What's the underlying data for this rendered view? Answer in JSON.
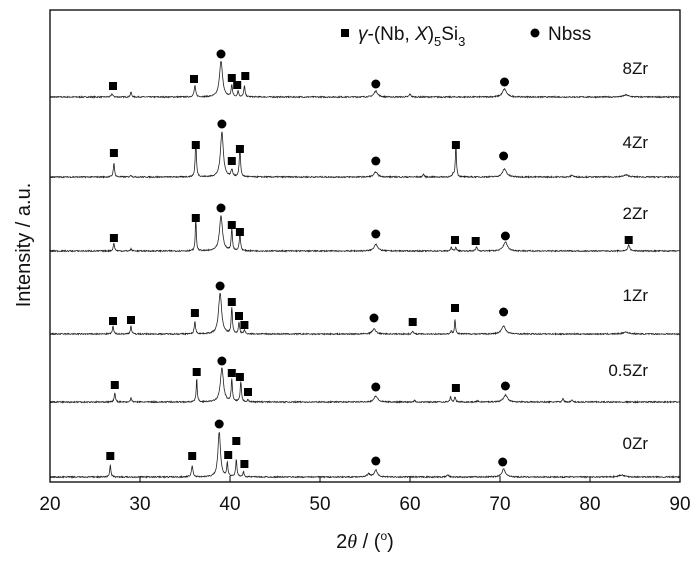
{
  "chart_data": {
    "type": "line",
    "title": "",
    "xlabel_prefix": "2",
    "xlabel_theta": "θ",
    "xlabel_suffix": " / (",
    "xlabel_deg": "o",
    "xlabel_close": ")",
    "ylabel": "Intensity / a.u.",
    "xlim": [
      20,
      90
    ],
    "xticks": [
      "20",
      "30",
      "40",
      "50",
      "60",
      "70",
      "80",
      "90"
    ],
    "grid": false,
    "legend_position": "top-right",
    "legend": [
      {
        "marker": "square",
        "parts": [
          "γ",
          "-(Nb, ",
          "X",
          ")",
          "5",
          "Si",
          "3"
        ]
      },
      {
        "marker": "circle",
        "label": "Nbss"
      }
    ],
    "series": [
      {
        "name": "8Zr",
        "peaks": [
          [
            26.9,
            3,
            0.15
          ],
          [
            29.0,
            5,
            0.12
          ],
          [
            36.1,
            11,
            0.15
          ],
          [
            39.0,
            36,
            0.3
          ],
          [
            40.2,
            12,
            0.12
          ],
          [
            40.9,
            6,
            0.12
          ],
          [
            41.6,
            11,
            0.12
          ],
          [
            56.2,
            6,
            0.35
          ],
          [
            60.0,
            3,
            0.15
          ],
          [
            70.5,
            8,
            0.4
          ],
          [
            84.0,
            2,
            0.5
          ]
        ],
        "markers": [
          [
            "square",
            27.0,
            11
          ],
          [
            "square",
            36.0,
            18
          ],
          [
            "circle",
            39.0,
            43
          ],
          [
            "square",
            40.2,
            19
          ],
          [
            "square",
            40.8,
            12
          ],
          [
            "square",
            41.7,
            21
          ],
          [
            "circle",
            56.2,
            13
          ],
          [
            "circle",
            70.5,
            15
          ]
        ]
      },
      {
        "name": "4Zr",
        "peaks": [
          [
            27.1,
            14,
            0.12
          ],
          [
            29.0,
            2,
            0.12
          ],
          [
            36.2,
            35,
            0.12
          ],
          [
            39.1,
            45,
            0.28
          ],
          [
            40.2,
            7,
            0.15
          ],
          [
            41.1,
            30,
            0.12
          ],
          [
            56.2,
            5,
            0.35
          ],
          [
            61.5,
            3,
            0.12
          ],
          [
            64.8,
            3,
            0.12
          ],
          [
            65.1,
            35,
            0.1
          ],
          [
            70.5,
            8,
            0.4
          ],
          [
            78.0,
            2,
            0.2
          ],
          [
            84.0,
            2,
            0.5
          ]
        ],
        "markers": [
          [
            "square",
            27.1,
            24
          ],
          [
            "square",
            36.2,
            32
          ],
          [
            "circle",
            39.1,
            53
          ],
          [
            "square",
            40.2,
            16
          ],
          [
            "square",
            41.1,
            28
          ],
          [
            "circle",
            56.2,
            16
          ],
          [
            "square",
            65.1,
            32
          ],
          [
            "circle",
            70.4,
            21
          ]
        ]
      },
      {
        "name": "2Zr",
        "peaks": [
          [
            27.1,
            8,
            0.12
          ],
          [
            29.0,
            2,
            0.12
          ],
          [
            36.2,
            33,
            0.1
          ],
          [
            39.0,
            35,
            0.3
          ],
          [
            40.2,
            22,
            0.12
          ],
          [
            41.1,
            18,
            0.12
          ],
          [
            56.2,
            7,
            0.35
          ],
          [
            64.6,
            4,
            0.12
          ],
          [
            65.1,
            4,
            0.12
          ],
          [
            67.4,
            4,
            0.15
          ],
          [
            70.6,
            9,
            0.4
          ],
          [
            84.3,
            6,
            0.2
          ]
        ],
        "markers": [
          [
            "square",
            27.1,
            13
          ],
          [
            "square",
            36.2,
            33
          ],
          [
            "circle",
            39.0,
            43
          ],
          [
            "square",
            40.2,
            26
          ],
          [
            "square",
            41.1,
            19
          ],
          [
            "circle",
            56.2,
            17
          ],
          [
            "square",
            65.0,
            11
          ],
          [
            "square",
            67.3,
            10
          ],
          [
            "circle",
            70.6,
            15
          ],
          [
            "square",
            84.3,
            11
          ]
        ]
      },
      {
        "name": "1Zr",
        "peaks": [
          [
            27.0,
            8,
            0.12
          ],
          [
            29.0,
            8,
            0.12
          ],
          [
            36.1,
            13,
            0.12
          ],
          [
            38.9,
            41,
            0.3
          ],
          [
            40.2,
            26,
            0.12
          ],
          [
            41.0,
            11,
            0.12
          ],
          [
            41.6,
            4,
            0.12
          ],
          [
            56.0,
            5,
            0.35
          ],
          [
            60.3,
            3,
            0.12
          ],
          [
            64.6,
            3,
            0.12
          ],
          [
            65.0,
            15,
            0.1
          ],
          [
            70.4,
            8,
            0.4
          ],
          [
            84.0,
            2,
            0.5
          ]
        ],
        "markers": [
          [
            "square",
            27.0,
            13
          ],
          [
            "square",
            29.0,
            14
          ],
          [
            "square",
            36.1,
            21
          ],
          [
            "circle",
            38.9,
            48
          ],
          [
            "square",
            40.2,
            32
          ],
          [
            "square",
            41.0,
            18
          ],
          [
            "square",
            41.6,
            9
          ],
          [
            "circle",
            56.0,
            16
          ],
          [
            "square",
            60.3,
            12
          ],
          [
            "square",
            65.0,
            26
          ],
          [
            "circle",
            70.4,
            22
          ]
        ]
      },
      {
        "name": "0.5Zr",
        "peaks": [
          [
            27.2,
            9,
            0.12
          ],
          [
            29.0,
            4,
            0.12
          ],
          [
            36.3,
            24,
            0.1
          ],
          [
            39.1,
            34,
            0.3
          ],
          [
            40.2,
            22,
            0.12
          ],
          [
            41.2,
            20,
            0.12
          ],
          [
            42.0,
            2,
            0.12
          ],
          [
            56.2,
            6,
            0.35
          ],
          [
            60.5,
            2,
            0.12
          ],
          [
            64.5,
            5,
            0.12
          ],
          [
            65.0,
            5,
            0.12
          ],
          [
            67.5,
            1,
            0.15
          ],
          [
            70.6,
            7,
            0.4
          ],
          [
            77.0,
            4,
            0.12
          ],
          [
            78.0,
            2,
            0.12
          ]
        ],
        "markers": [
          [
            "square",
            27.2,
            17
          ],
          [
            "square",
            36.3,
            30
          ],
          [
            "circle",
            39.1,
            41
          ],
          [
            "square",
            40.2,
            29
          ],
          [
            "square",
            41.1,
            25
          ],
          [
            "square",
            42.0,
            10
          ],
          [
            "circle",
            56.2,
            15
          ],
          [
            "square",
            65.1,
            14
          ],
          [
            "circle",
            70.6,
            16
          ]
        ]
      },
      {
        "name": "0Zr",
        "peaks": [
          [
            26.7,
            12,
            0.12
          ],
          [
            35.8,
            11,
            0.15
          ],
          [
            38.8,
            45,
            0.25
          ],
          [
            39.7,
            14,
            0.12
          ],
          [
            40.7,
            18,
            0.12
          ],
          [
            41.5,
            5,
            0.12
          ],
          [
            55.4,
            3,
            0.3
          ],
          [
            56.2,
            7,
            0.3
          ],
          [
            64.2,
            2,
            0.2
          ],
          [
            70.4,
            8,
            0.35
          ],
          [
            83.5,
            2,
            0.6
          ]
        ],
        "markers": [
          [
            "square",
            26.7,
            21
          ],
          [
            "square",
            35.8,
            21
          ],
          [
            "circle",
            38.8,
            53
          ],
          [
            "square",
            39.8,
            22
          ],
          [
            "square",
            40.7,
            36
          ],
          [
            "square",
            41.6,
            13
          ],
          [
            "circle",
            56.2,
            16
          ],
          [
            "circle",
            70.3,
            15
          ]
        ]
      }
    ]
  }
}
